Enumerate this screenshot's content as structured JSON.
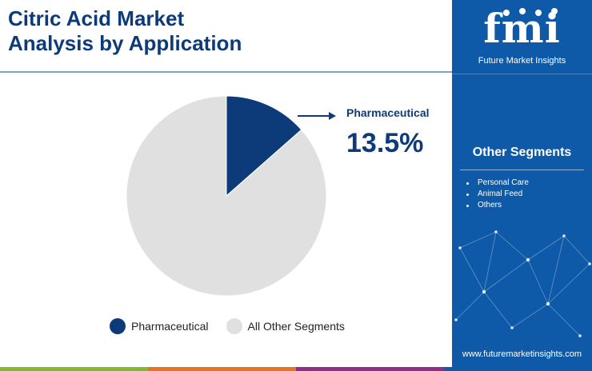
{
  "title": {
    "line1": "Citric Acid Market",
    "line2": "Analysis by Application"
  },
  "chart_data": {
    "type": "pie",
    "title": "Citric Acid Market Analysis by Application",
    "slices": [
      {
        "label": "Pharmaceutical",
        "value": 13.5,
        "color": "#0d3b7a"
      },
      {
        "label": "All Other Segments",
        "value": 86.5,
        "color": "#e0e0e0"
      }
    ],
    "start_angle_deg": 0,
    "direction": "clockwise",
    "legend_placement": "bottom",
    "callout": {
      "label": "Pharmaceutical",
      "value_text": "13.5%"
    }
  },
  "legend": [
    {
      "label": "Pharmaceutical",
      "color": "#0d3b7a"
    },
    {
      "label": "All Other Segments",
      "color": "#e0e0e0"
    }
  ],
  "sidebar": {
    "logo_text": "fmi",
    "logo_subtitle": "Future Market Insights",
    "segments_title": "Other Segments",
    "segments": [
      "Personal Care",
      "Animal Feed",
      "Others"
    ],
    "website": "www.futuremarketinsights.com",
    "background_color": "#0e5aa8"
  },
  "bottom_bar_colors": [
    "#7fba2e",
    "#e8731f",
    "#8a2f8c",
    "#0e5aa8"
  ],
  "icons": [
    "arrow-right-icon",
    "fmi-logo",
    "network-graphic"
  ]
}
